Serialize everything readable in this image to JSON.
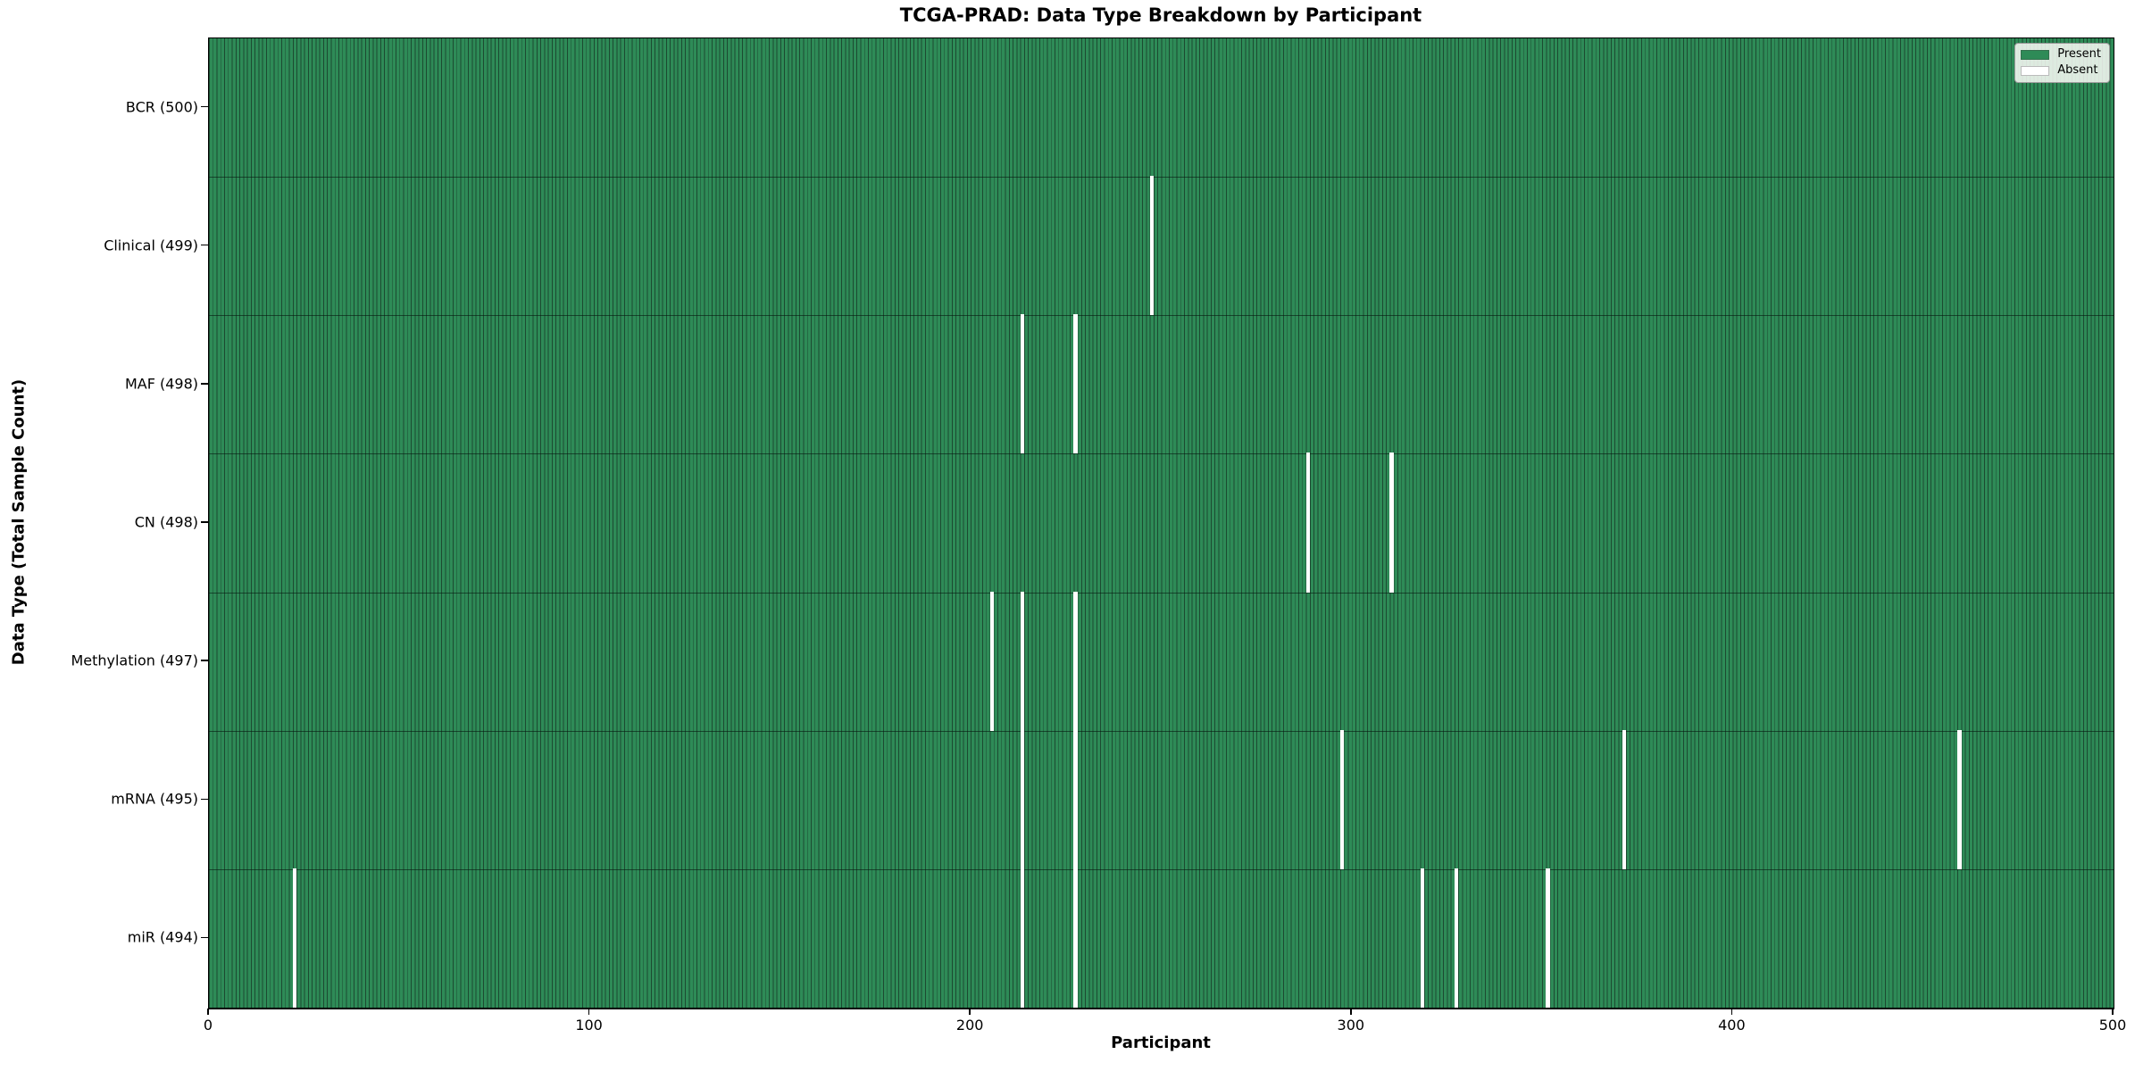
{
  "chart_data": {
    "type": "heatmap",
    "title": "TCGA-PRAD: Data Type Breakdown by Participant",
    "xlabel": "Participant",
    "ylabel": "Data Type (Total Sample Count)",
    "x_range": [
      0,
      500
    ],
    "x_ticks": [
      "0",
      "100",
      "200",
      "300",
      "400",
      "500"
    ],
    "n_participants": 500,
    "grid": false,
    "legend": {
      "position": "upper right",
      "entries": [
        {
          "label": "Present",
          "color": "#2e8b57"
        },
        {
          "label": "Absent",
          "color": "#ffffff"
        }
      ]
    },
    "rows": [
      {
        "label": "BCR (500)",
        "data_type": "BCR",
        "total_samples": 500,
        "absent_participants": []
      },
      {
        "label": "Clinical (499)",
        "data_type": "Clinical",
        "total_samples": 499,
        "absent_participants": [
          247
        ]
      },
      {
        "label": "MAF (498)",
        "data_type": "MAF",
        "total_samples": 498,
        "absent_participants": [
          213,
          227
        ]
      },
      {
        "label": "CN (498)",
        "data_type": "CN",
        "total_samples": 498,
        "absent_participants": [
          288,
          310
        ]
      },
      {
        "label": "Methylation (497)",
        "data_type": "Methylation",
        "total_samples": 497,
        "absent_participants": [
          205,
          213,
          227
        ]
      },
      {
        "label": "mRNA (495)",
        "data_type": "mRNA",
        "total_samples": 495,
        "absent_participants": [
          213,
          227,
          297,
          371,
          459
        ]
      },
      {
        "label": "miR (494)",
        "data_type": "miR",
        "total_samples": 494,
        "absent_participants": [
          22,
          213,
          227,
          318,
          327,
          351
        ]
      }
    ],
    "colors": {
      "present": "#2e8b57",
      "absent": "#ffffff",
      "column_edge": "#1c4a31",
      "row_divider": "#10281a",
      "axis": "#000000"
    }
  }
}
